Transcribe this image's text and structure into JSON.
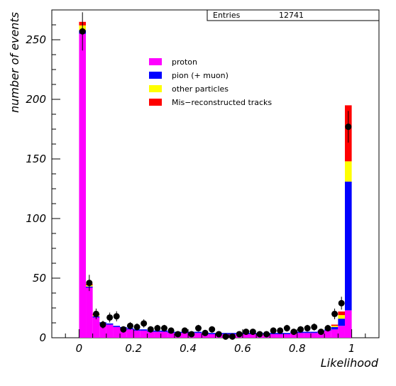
{
  "stats": {
    "entries_label": "Entries",
    "entries_value": "12741"
  },
  "chart_data": {
    "type": "bar",
    "stacked": true,
    "histogram": true,
    "xlabel": "Likelihood",
    "ylabel": "number of events",
    "xlim": [
      -0.1,
      1.1
    ],
    "ylim": [
      0,
      275
    ],
    "xticks": [
      0,
      0.2,
      0.4,
      0.6,
      0.8,
      1
    ],
    "xtick_labels": [
      "0",
      "0.2",
      "0.4",
      "0.6",
      "0.8",
      "1"
    ],
    "yticks": [
      0,
      50,
      100,
      150,
      200,
      250
    ],
    "ytick_labels": [
      "0",
      "50",
      "100",
      "150",
      "200",
      "250"
    ],
    "bin_edges_start": 0,
    "bin_width": 0.025,
    "bins": 40,
    "legend_position": "top-center",
    "legend": [
      {
        "label": "proton",
        "color": "#ff00ff"
      },
      {
        "label": "pion (+ muon)",
        "color": "#0000ff"
      },
      {
        "label": "other particles",
        "color": "#ffff00"
      },
      {
        "label": "Mis−reconstructed tracks",
        "color": "#ff0000"
      }
    ],
    "series": [
      {
        "name": "proton",
        "color": "#ff00ff",
        "values": [
          255,
          42,
          17,
          12,
          11,
          9,
          8,
          7,
          6,
          6,
          5,
          5,
          5,
          4,
          4,
          4,
          4,
          4,
          3,
          3,
          3,
          3,
          3,
          3,
          3,
          3,
          3,
          3,
          3,
          3,
          3,
          4,
          4,
          4,
          4,
          5,
          6,
          7,
          10,
          23
        ]
      },
      {
        "name": "pion (+ muon)",
        "color": "#0000ff",
        "values": [
          3,
          1,
          1,
          1,
          1,
          1,
          1,
          1,
          1,
          1,
          1,
          1,
          1,
          1,
          1,
          1,
          1,
          1,
          1,
          1,
          1,
          1,
          1,
          1,
          1,
          1,
          1,
          1,
          1,
          1,
          1,
          1,
          1,
          1,
          1,
          1,
          1,
          2,
          6,
          108
        ]
      },
      {
        "name": "other particles",
        "color": "#ffff00",
        "values": [
          4,
          1,
          1,
          0,
          0,
          0,
          0,
          0,
          0,
          0,
          0,
          0,
          0,
          0,
          0,
          0,
          0,
          0,
          0,
          0,
          0,
          0,
          0,
          0,
          0,
          0,
          0,
          0,
          0,
          0,
          0,
          0,
          0,
          0,
          0,
          0,
          0,
          1,
          3,
          17
        ]
      },
      {
        "name": "Mis−reconstructed tracks",
        "color": "#ff0000",
        "values": [
          3,
          1,
          1,
          0,
          0,
          0,
          0,
          0,
          0,
          0,
          0,
          0,
          0,
          0,
          0,
          0,
          0,
          0,
          0,
          0,
          0,
          0,
          0,
          0,
          0,
          0,
          0,
          0,
          0,
          0,
          0,
          0,
          0,
          0,
          0,
          0,
          0,
          1,
          3,
          47
        ]
      }
    ],
    "data_points": {
      "x": [
        0.0125,
        0.0375,
        0.0625,
        0.0875,
        0.1125,
        0.1375,
        0.1625,
        0.1875,
        0.2125,
        0.2375,
        0.2625,
        0.2875,
        0.3125,
        0.3375,
        0.3625,
        0.3875,
        0.4125,
        0.4375,
        0.4625,
        0.4875,
        0.5125,
        0.5375,
        0.5625,
        0.5875,
        0.6125,
        0.6375,
        0.6625,
        0.6875,
        0.7125,
        0.7375,
        0.7625,
        0.7875,
        0.8125,
        0.8375,
        0.8625,
        0.8875,
        0.9125,
        0.9375,
        0.9625,
        0.9875
      ],
      "y": [
        257,
        46,
        20,
        11,
        17,
        18,
        7,
        10,
        9,
        12,
        7,
        8,
        8,
        6,
        3,
        6,
        3,
        8,
        4,
        7,
        3,
        1,
        1,
        3,
        5,
        5,
        3,
        3,
        6,
        6,
        8,
        5,
        7,
        8,
        9,
        5,
        8,
        20,
        29,
        177
      ]
    }
  }
}
